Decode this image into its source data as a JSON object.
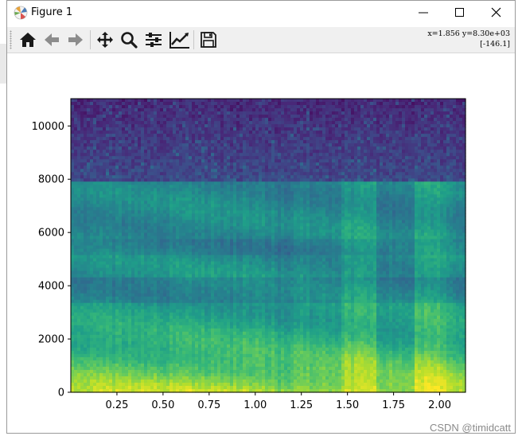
{
  "window": {
    "title": "Figure 1",
    "controls": [
      "minimize",
      "maximize",
      "close"
    ]
  },
  "toolbar": {
    "tools": [
      "home-icon",
      "back-arrow-icon",
      "forward-arrow-icon",
      "pan-icon",
      "zoom-icon",
      "configure-subplots-icon",
      "edit-axis-icon",
      "save-icon"
    ],
    "coords_line1": "x=1.856 y=8.30e+03",
    "coords_line2": "[-146.1]"
  },
  "chart_data": {
    "type": "heatmap",
    "title": "",
    "xlabel": "",
    "ylabel": "",
    "xlim": [
      0,
      2.14
    ],
    "ylim": [
      0,
      11025
    ],
    "x_ticks": [
      "0.25",
      "0.50",
      "0.75",
      "1.00",
      "1.25",
      "1.50",
      "1.75",
      "2.00"
    ],
    "x_tick_values": [
      0.25,
      0.5,
      0.75,
      1.0,
      1.25,
      1.5,
      1.75,
      2.0
    ],
    "y_ticks": [
      "0",
      "2000",
      "4000",
      "6000",
      "8000",
      "10000"
    ],
    "y_tick_values": [
      0,
      2000,
      4000,
      6000,
      8000,
      10000
    ],
    "colormap": "viridis",
    "description": "spectrogram: high energy (yellow) below ~2000, green/teal 2000–7800, dark blue above ~7900"
  },
  "watermark": "CSDN @timidcatt",
  "colors": {
    "toolbar_bg": "#f0f0f0",
    "axes_frame": "#000000"
  }
}
